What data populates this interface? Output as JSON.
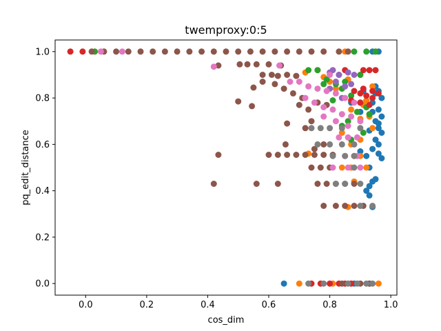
{
  "chart_data": {
    "type": "scatter",
    "title": "twemproxy:0:5",
    "xlabel": "cos_dim",
    "ylabel": "pq_edit_distance",
    "xlim": [
      -0.1,
      1.02
    ],
    "ylim": [
      -0.05,
      1.05
    ],
    "xticks": [
      "0.0",
      "0.2",
      "0.4",
      "0.6",
      "0.8",
      "1.0"
    ],
    "xtick_values": [
      0.0,
      0.2,
      0.4,
      0.6,
      0.8,
      1.0
    ],
    "yticks": [
      "0.0",
      "0.2",
      "0.4",
      "0.6",
      "0.8",
      "1.0"
    ],
    "ytick_values": [
      0.0,
      0.2,
      0.4,
      0.6,
      0.8,
      1.0
    ],
    "grid": false,
    "legend": "none",
    "series": [
      {
        "color": "#1f77b4",
        "points": [
          [
            0.65,
            0.0
          ],
          [
            0.88,
            0.0
          ],
          [
            0.93,
            0.0
          ],
          [
            0.96,
            1.0
          ],
          [
            0.94,
            1.0
          ],
          [
            0.95,
            0.85
          ],
          [
            0.96,
            0.83
          ],
          [
            0.97,
            0.8
          ],
          [
            0.94,
            0.78
          ],
          [
            0.96,
            0.75
          ],
          [
            0.97,
            0.72
          ],
          [
            0.95,
            0.7
          ],
          [
            0.96,
            0.67
          ],
          [
            0.97,
            0.65
          ],
          [
            0.95,
            0.62
          ],
          [
            0.96,
            0.6
          ],
          [
            0.94,
            0.58
          ],
          [
            0.96,
            0.56
          ],
          [
            0.97,
            0.54
          ],
          [
            0.93,
            0.5
          ],
          [
            0.95,
            0.45
          ],
          [
            0.94,
            0.44
          ],
          [
            0.93,
            0.42
          ],
          [
            0.92,
            0.4
          ],
          [
            0.93,
            0.38
          ],
          [
            0.94,
            0.33
          ],
          [
            0.92,
            0.55
          ],
          [
            0.9,
            0.57
          ],
          [
            0.91,
            0.83
          ],
          [
            0.93,
            0.66
          ],
          [
            0.87,
            0.78
          ],
          [
            0.94,
            0.74
          ],
          [
            0.95,
            0.82
          ],
          [
            0.92,
            0.79
          ],
          [
            0.96,
            0.69
          ],
          [
            0.9,
            0.74
          ]
        ]
      },
      {
        "color": "#ff7f0e",
        "points": [
          [
            0.96,
            0.0
          ],
          [
            0.81,
            0.0
          ],
          [
            0.7,
            0.0
          ],
          [
            0.73,
            0.56
          ],
          [
            0.88,
            0.55
          ],
          [
            0.84,
            0.5
          ],
          [
            0.87,
            0.5
          ],
          [
            0.9,
            0.55
          ],
          [
            0.92,
            0.5
          ],
          [
            0.94,
            0.67
          ],
          [
            0.9,
            0.62
          ],
          [
            0.87,
            0.6
          ],
          [
            0.84,
            0.65
          ],
          [
            0.87,
            0.75
          ],
          [
            0.92,
            0.79
          ],
          [
            0.94,
            0.85
          ],
          [
            0.9,
            0.9
          ],
          [
            0.86,
            0.88
          ],
          [
            0.8,
            0.87
          ],
          [
            0.76,
            0.92
          ],
          [
            0.72,
            0.91
          ],
          [
            0.88,
            0.44
          ],
          [
            0.86,
            0.33
          ],
          [
            0.91,
            0.77
          ],
          [
            0.93,
            0.72
          ],
          [
            0.9,
            0.71
          ],
          [
            0.82,
            0.84
          ],
          [
            0.78,
            0.89
          ],
          [
            0.85,
            1.0
          ]
        ]
      },
      {
        "color": "#2ca02c",
        "points": [
          [
            0.03,
            1.0
          ],
          [
            0.73,
            0.92
          ],
          [
            0.76,
            0.92
          ],
          [
            0.79,
            0.88
          ],
          [
            0.82,
            0.86
          ],
          [
            0.84,
            0.84
          ],
          [
            0.87,
            0.81
          ],
          [
            0.9,
            0.78
          ],
          [
            0.92,
            0.76
          ],
          [
            0.89,
            0.74
          ],
          [
            0.86,
            0.7
          ],
          [
            0.84,
            0.68
          ],
          [
            0.9,
            0.9
          ],
          [
            0.93,
            0.73
          ],
          [
            0.88,
            1.0
          ],
          [
            0.92,
            1.0
          ],
          [
            0.95,
            1.0
          ],
          [
            0.83,
            0.9
          ],
          [
            0.85,
            0.87
          ],
          [
            0.91,
            0.65
          ],
          [
            0.87,
            0.62
          ],
          [
            0.81,
            0.79
          ],
          [
            0.78,
            0.86
          ]
        ]
      },
      {
        "color": "#d62728",
        "points": [
          [
            -0.05,
            1.0
          ],
          [
            -0.01,
            1.0
          ],
          [
            0.85,
            0.0
          ],
          [
            0.8,
            0.0
          ],
          [
            0.77,
            0.0
          ],
          [
            0.74,
            0.0
          ],
          [
            0.83,
            0.0
          ],
          [
            0.87,
            0.0
          ],
          [
            0.91,
            0.92
          ],
          [
            0.93,
            0.92
          ],
          [
            0.95,
            0.92
          ],
          [
            0.9,
            0.82
          ],
          [
            0.92,
            0.81
          ],
          [
            0.94,
            0.8
          ],
          [
            0.96,
            0.82
          ],
          [
            0.87,
            0.79
          ],
          [
            0.9,
            0.78
          ],
          [
            0.93,
            0.77
          ],
          [
            0.91,
            0.84
          ],
          [
            0.94,
            0.83
          ],
          [
            0.88,
            0.83
          ],
          [
            0.85,
            0.92
          ]
        ]
      },
      {
        "color": "#9467bd",
        "points": [
          [
            0.8,
            0.91
          ],
          [
            0.83,
            0.9
          ],
          [
            0.86,
            0.91
          ],
          [
            0.88,
            0.9
          ],
          [
            0.85,
            0.85
          ],
          [
            0.82,
            0.87
          ],
          [
            0.8,
            0.84
          ],
          [
            0.84,
            0.8
          ],
          [
            0.87,
            0.86
          ],
          [
            0.81,
            0.92
          ]
        ]
      },
      {
        "color": "#8c564b",
        "points": [
          [
            0.02,
            1.0
          ],
          [
            0.06,
            1.0
          ],
          [
            0.1,
            1.0
          ],
          [
            0.14,
            1.0
          ],
          [
            0.18,
            1.0
          ],
          [
            0.22,
            1.0
          ],
          [
            0.26,
            1.0
          ],
          [
            0.3,
            1.0
          ],
          [
            0.34,
            1.0
          ],
          [
            0.38,
            1.0
          ],
          [
            0.42,
            1.0
          ],
          [
            0.46,
            1.0
          ],
          [
            0.5,
            1.0
          ],
          [
            0.54,
            1.0
          ],
          [
            0.58,
            1.0
          ],
          [
            0.62,
            1.0
          ],
          [
            0.66,
            1.0
          ],
          [
            0.7,
            1.0
          ],
          [
            0.74,
            1.0
          ],
          [
            0.78,
            1.0
          ],
          [
            0.83,
            1.0
          ],
          [
            0.86,
            1.0
          ],
          [
            0.435,
            0.94
          ],
          [
            0.42,
            0.43
          ],
          [
            0.435,
            0.555
          ],
          [
            0.56,
            0.43
          ],
          [
            0.63,
            0.43
          ],
          [
            0.5,
            0.785
          ],
          [
            0.545,
            0.765
          ],
          [
            0.55,
            0.845
          ],
          [
            0.505,
            0.945
          ],
          [
            0.53,
            0.945
          ],
          [
            0.56,
            0.945
          ],
          [
            0.6,
            0.945
          ],
          [
            0.64,
            0.94
          ],
          [
            0.58,
            0.9
          ],
          [
            0.61,
            0.9
          ],
          [
            0.63,
            0.895
          ],
          [
            0.66,
            0.9
          ],
          [
            0.69,
            0.895
          ],
          [
            0.58,
            0.87
          ],
          [
            0.62,
            0.86
          ],
          [
            0.65,
            0.84
          ],
          [
            0.68,
            0.82
          ],
          [
            0.71,
            0.8
          ],
          [
            0.7,
            0.77
          ],
          [
            0.73,
            0.75
          ],
          [
            0.76,
            0.78
          ],
          [
            0.79,
            0.77
          ],
          [
            0.66,
            0.69
          ],
          [
            0.655,
            0.6
          ],
          [
            0.6,
            0.555
          ],
          [
            0.63,
            0.555
          ],
          [
            0.66,
            0.555
          ],
          [
            0.69,
            0.555
          ],
          [
            0.72,
            0.555
          ],
          [
            0.75,
            0.555
          ],
          [
            0.78,
            0.555
          ],
          [
            0.81,
            0.555
          ],
          [
            0.74,
            0.5
          ],
          [
            0.77,
            0.5
          ],
          [
            0.8,
            0.5
          ],
          [
            0.76,
            0.43
          ],
          [
            0.79,
            0.43
          ],
          [
            0.82,
            0.43
          ],
          [
            0.85,
            0.43
          ],
          [
            0.88,
            0.43
          ],
          [
            0.78,
            0.335
          ],
          [
            0.82,
            0.335
          ],
          [
            0.85,
            0.335
          ],
          [
            0.88,
            0.335
          ],
          [
            0.91,
            0.335
          ],
          [
            0.72,
            0.67
          ],
          [
            0.74,
            0.7
          ],
          [
            0.75,
            0.58
          ],
          [
            0.78,
            0.6
          ],
          [
            0.84,
            0.0
          ],
          [
            0.9,
            0.0
          ],
          [
            0.93,
            0.0
          ]
        ]
      },
      {
        "color": "#e377c2",
        "points": [
          [
            0.05,
            1.0
          ],
          [
            0.12,
            1.0
          ],
          [
            0.42,
            0.935
          ],
          [
            0.635,
            0.94
          ],
          [
            0.67,
            0.87
          ],
          [
            0.7,
            0.87
          ],
          [
            0.73,
            0.85
          ],
          [
            0.76,
            0.84
          ],
          [
            0.79,
            0.83
          ],
          [
            0.82,
            0.82
          ],
          [
            0.85,
            0.8
          ],
          [
            0.88,
            0.78
          ],
          [
            0.72,
            0.8
          ],
          [
            0.75,
            0.78
          ],
          [
            0.78,
            0.76
          ],
          [
            0.81,
            0.75
          ],
          [
            0.84,
            0.73
          ],
          [
            0.87,
            0.72
          ],
          [
            0.9,
            0.7
          ],
          [
            0.78,
            0.72
          ],
          [
            0.82,
            0.7
          ],
          [
            0.86,
            0.68
          ],
          [
            0.8,
            0.9
          ],
          [
            0.83,
            0.63
          ],
          [
            0.86,
            0.63
          ],
          [
            0.89,
            0.63
          ],
          [
            0.81,
            0.5
          ],
          [
            0.86,
            0.5
          ],
          [
            0.9,
            0.5
          ],
          [
            0.85,
            0.55
          ],
          [
            0.89,
            0.55
          ]
        ]
      },
      {
        "color": "#7f7f7f",
        "points": [
          [
            0.73,
            0.0
          ],
          [
            0.78,
            0.0
          ],
          [
            0.86,
            0.0
          ],
          [
            0.89,
            0.0
          ],
          [
            0.92,
            0.0
          ],
          [
            0.94,
            0.0
          ],
          [
            0.74,
            0.67
          ],
          [
            0.77,
            0.67
          ],
          [
            0.8,
            0.67
          ],
          [
            0.84,
            0.67
          ],
          [
            0.76,
            0.6
          ],
          [
            0.8,
            0.6
          ],
          [
            0.84,
            0.6
          ],
          [
            0.88,
            0.6
          ],
          [
            0.81,
            0.55
          ],
          [
            0.85,
            0.55
          ],
          [
            0.88,
            0.55
          ],
          [
            0.82,
            0.43
          ],
          [
            0.85,
            0.43
          ],
          [
            0.9,
            0.43
          ],
          [
            0.9,
            0.335
          ],
          [
            0.94,
            0.335
          ],
          [
            0.88,
            0.5
          ],
          [
            0.9,
            0.67
          ]
        ]
      }
    ]
  }
}
